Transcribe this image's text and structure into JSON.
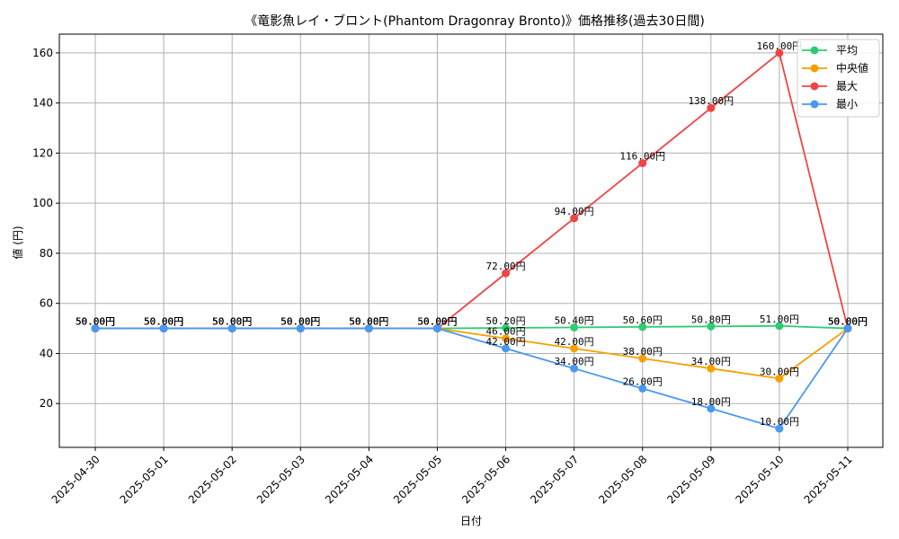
{
  "chart_data": {
    "type": "line",
    "title": "《竜影魚レイ・ブロント(Phantom Dragonray Bronto)》価格推移(過去30日間)",
    "xlabel": "日付",
    "ylabel": "値 (円)",
    "ylim": [
      2.5,
      167.5
    ],
    "yticks": [
      20,
      40,
      60,
      80,
      100,
      120,
      140,
      160
    ],
    "grid": true,
    "legend_position": "top-right",
    "label_suffix": "円",
    "categories": [
      "2025-04-30",
      "2025-05-01",
      "2025-05-02",
      "2025-05-03",
      "2025-05-04",
      "2025-05-05",
      "2025-05-06",
      "2025-05-07",
      "2025-05-08",
      "2025-05-09",
      "2025-05-10",
      "2025-05-11"
    ],
    "series": [
      {
        "name": "平均",
        "color": "#2ecc71",
        "values": [
          50,
          50,
          50,
          50,
          50,
          50,
          50.2,
          50.4,
          50.6,
          50.8,
          51.0,
          50
        ]
      },
      {
        "name": "中央値",
        "color": "#f5a000",
        "values": [
          50,
          50,
          50,
          50,
          50,
          50,
          46,
          42,
          38,
          34,
          30,
          50
        ]
      },
      {
        "name": "最大",
        "color": "#ef4444",
        "values": [
          50,
          50,
          50,
          50,
          50,
          50,
          72,
          94,
          116,
          138,
          160,
          50
        ]
      },
      {
        "name": "最小",
        "color": "#4a98f0",
        "values": [
          50,
          50,
          50,
          50,
          50,
          50,
          42,
          34,
          26,
          18,
          10,
          50
        ]
      }
    ]
  }
}
